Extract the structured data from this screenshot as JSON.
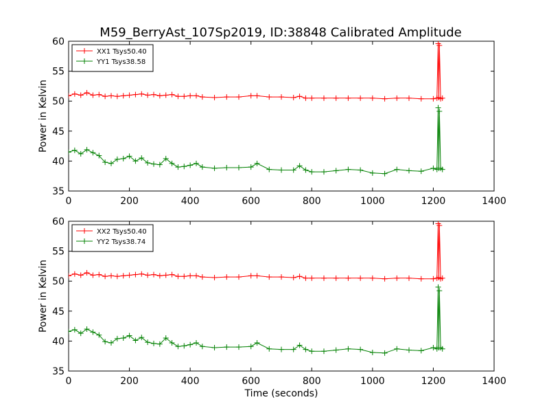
{
  "figure": {
    "title": "M59_BerryAst_107Sp2019, ID:38848 Calibrated Amplitude"
  },
  "chart_data": [
    {
      "type": "line",
      "title": "M59_BerryAst_107Sp2019, ID:38848 Calibrated Amplitude",
      "xlabel": "",
      "ylabel": "Power in Kelvin",
      "xlim": [
        0,
        1400
      ],
      "ylim": [
        35,
        60
      ],
      "xticks": [
        "0",
        "200",
        "400",
        "600",
        "800",
        "1000",
        "1200",
        "1400"
      ],
      "yticks": [
        "35",
        "40",
        "45",
        "50",
        "55",
        "60"
      ],
      "legend_position": "top-left",
      "grid": false,
      "marker": "+",
      "series": [
        {
          "name": "XX1 Tsys50.40",
          "color": "#ff0000",
          "x": [
            0,
            20,
            40,
            60,
            80,
            100,
            120,
            140,
            160,
            180,
            200,
            220,
            240,
            260,
            280,
            300,
            320,
            340,
            360,
            380,
            400,
            420,
            440,
            480,
            520,
            560,
            600,
            620,
            660,
            700,
            740,
            760,
            780,
            800,
            840,
            880,
            920,
            960,
            1000,
            1040,
            1080,
            1120,
            1160,
            1200,
            1212,
            1216,
            1218,
            1220,
            1224,
            1230
          ],
          "y": [
            50.9,
            51.2,
            51.0,
            51.4,
            51.0,
            51.1,
            50.8,
            50.9,
            50.8,
            50.9,
            51.0,
            51.1,
            51.2,
            51.0,
            51.1,
            50.9,
            51.0,
            51.1,
            50.8,
            50.8,
            50.9,
            50.9,
            50.7,
            50.6,
            50.7,
            50.7,
            50.9,
            50.9,
            50.7,
            50.7,
            50.6,
            50.8,
            50.5,
            50.5,
            50.5,
            50.5,
            50.5,
            50.5,
            50.5,
            50.4,
            50.5,
            50.5,
            50.4,
            50.4,
            50.5,
            59.6,
            50.6,
            59.3,
            50.4,
            50.5
          ]
        },
        {
          "name": "YY1 Tsys38.58",
          "color": "#008000",
          "x": [
            0,
            20,
            40,
            60,
            80,
            100,
            120,
            140,
            160,
            180,
            200,
            220,
            240,
            260,
            280,
            300,
            320,
            340,
            360,
            380,
            400,
            420,
            440,
            480,
            520,
            560,
            600,
            620,
            660,
            700,
            740,
            760,
            780,
            800,
            840,
            880,
            920,
            960,
            1000,
            1040,
            1080,
            1120,
            1160,
            1200,
            1212,
            1216,
            1218,
            1220,
            1224,
            1230
          ],
          "y": [
            41.5,
            41.8,
            41.2,
            41.9,
            41.4,
            40.9,
            39.8,
            39.6,
            40.3,
            40.4,
            40.8,
            40.0,
            40.5,
            39.7,
            39.5,
            39.4,
            40.4,
            39.6,
            39.0,
            39.1,
            39.3,
            39.6,
            39.0,
            38.8,
            38.9,
            38.9,
            39.0,
            39.6,
            38.6,
            38.5,
            38.5,
            39.2,
            38.5,
            38.2,
            38.2,
            38.4,
            38.6,
            38.5,
            38.0,
            37.9,
            38.6,
            38.4,
            38.3,
            38.8,
            38.6,
            48.9,
            38.8,
            48.3,
            38.8,
            38.6
          ]
        }
      ]
    },
    {
      "type": "line",
      "title": "",
      "xlabel": "Time (seconds)",
      "ylabel": "Power in Kelvin",
      "xlim": [
        0,
        1400
      ],
      "ylim": [
        35,
        60
      ],
      "xticks": [
        "0",
        "200",
        "400",
        "600",
        "800",
        "1000",
        "1200",
        "1400"
      ],
      "yticks": [
        "35",
        "40",
        "45",
        "50",
        "55",
        "60"
      ],
      "legend_position": "top-left",
      "grid": false,
      "marker": "+",
      "series": [
        {
          "name": "XX2 Tsys50.40",
          "color": "#ff0000",
          "x": [
            0,
            20,
            40,
            60,
            80,
            100,
            120,
            140,
            160,
            180,
            200,
            220,
            240,
            260,
            280,
            300,
            320,
            340,
            360,
            380,
            400,
            420,
            440,
            480,
            520,
            560,
            600,
            620,
            660,
            700,
            740,
            760,
            780,
            800,
            840,
            880,
            920,
            960,
            1000,
            1040,
            1080,
            1120,
            1160,
            1200,
            1212,
            1216,
            1218,
            1220,
            1224,
            1230
          ],
          "y": [
            50.9,
            51.2,
            51.0,
            51.4,
            51.0,
            51.1,
            50.8,
            50.9,
            50.8,
            50.9,
            51.0,
            51.1,
            51.2,
            51.0,
            51.1,
            50.9,
            51.0,
            51.1,
            50.8,
            50.8,
            50.9,
            50.9,
            50.7,
            50.6,
            50.7,
            50.7,
            50.9,
            50.9,
            50.7,
            50.7,
            50.6,
            50.8,
            50.5,
            50.5,
            50.5,
            50.5,
            50.5,
            50.5,
            50.5,
            50.4,
            50.5,
            50.5,
            50.4,
            50.4,
            50.5,
            59.6,
            50.6,
            59.3,
            50.4,
            50.5
          ]
        },
        {
          "name": "YY2 Tsys38.74",
          "color": "#008000",
          "x": [
            0,
            20,
            40,
            60,
            80,
            100,
            120,
            140,
            160,
            180,
            200,
            220,
            240,
            260,
            280,
            300,
            320,
            340,
            360,
            380,
            400,
            420,
            440,
            480,
            520,
            560,
            600,
            620,
            660,
            700,
            740,
            760,
            780,
            800,
            840,
            880,
            920,
            960,
            1000,
            1040,
            1080,
            1120,
            1160,
            1200,
            1212,
            1216,
            1218,
            1220,
            1224,
            1230
          ],
          "y": [
            41.6,
            41.9,
            41.3,
            42.0,
            41.5,
            41.0,
            39.9,
            39.7,
            40.4,
            40.5,
            40.9,
            40.1,
            40.6,
            39.8,
            39.6,
            39.5,
            40.5,
            39.7,
            39.1,
            39.2,
            39.4,
            39.7,
            39.1,
            38.9,
            39.0,
            39.0,
            39.1,
            39.7,
            38.7,
            38.6,
            38.6,
            39.3,
            38.6,
            38.3,
            38.3,
            38.5,
            38.7,
            38.6,
            38.1,
            38.0,
            38.7,
            38.5,
            38.4,
            38.9,
            38.7,
            49.0,
            38.9,
            48.4,
            38.9,
            38.7
          ]
        }
      ]
    }
  ]
}
